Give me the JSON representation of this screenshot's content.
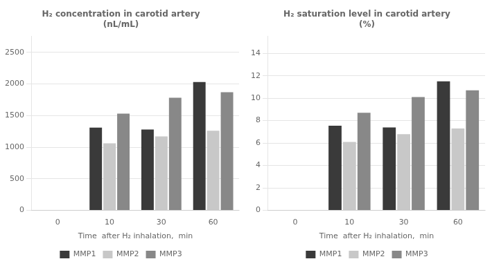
{
  "chart_data": [
    {
      "type": "bar",
      "title": "H₂ concentration in carotid artery\n(nL/mL)",
      "x_label": "Time  after H₂ inhalation,  min",
      "categories": [
        "0",
        "10",
        "30",
        "60"
      ],
      "series": [
        {
          "name": "MMP1",
          "color": "#3a3a3a",
          "values": [
            null,
            1310,
            1280,
            2030
          ]
        },
        {
          "name": "MMP2",
          "color": "#c8c8c8",
          "values": [
            null,
            1060,
            1170,
            1260
          ]
        },
        {
          "name": "MMP3",
          "color": "#888888",
          "values": [
            null,
            1530,
            1780,
            1870
          ]
        }
      ],
      "ylim": [
        0,
        2750
      ],
      "yticks": [
        0,
        500,
        1000,
        1500,
        2000,
        2500
      ],
      "grid": true,
      "legend": "bottom"
    },
    {
      "type": "bar",
      "title": "H₂ saturation level in carotid artery\n(%)",
      "x_label": "Time  after H₂ inhalation,  min",
      "categories": [
        "0",
        "10",
        "30",
        "60"
      ],
      "series": [
        {
          "name": "MMP1",
          "color": "#3a3a3a",
          "values": [
            null,
            7.55,
            7.4,
            11.5
          ]
        },
        {
          "name": "MMP2",
          "color": "#c8c8c8",
          "values": [
            null,
            6.1,
            6.8,
            7.3
          ]
        },
        {
          "name": "MMP3",
          "color": "#888888",
          "values": [
            null,
            8.7,
            10.1,
            10.7
          ]
        }
      ],
      "ylim": [
        0,
        15.5
      ],
      "yticks": [
        0,
        2,
        4,
        6,
        8,
        10,
        12,
        14
      ],
      "grid": true,
      "legend": "bottom"
    }
  ]
}
